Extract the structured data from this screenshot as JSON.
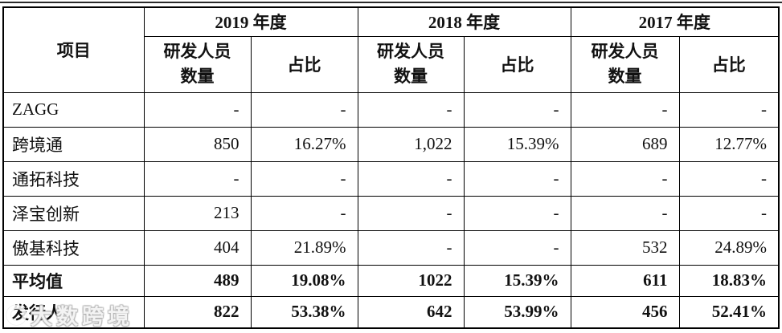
{
  "table": {
    "header": {
      "project_label": "项目",
      "year_groups": [
        {
          "label": "2019 年度"
        },
        {
          "label": "2018 年度"
        },
        {
          "label": "2017 年度"
        }
      ],
      "sub_headers": {
        "count_label": "研发人员\n数量",
        "ratio_label": "占比"
      }
    },
    "rows": [
      {
        "name": "ZAGG",
        "bold": false,
        "values": [
          "-",
          "-",
          "-",
          "-",
          "-",
          "-"
        ]
      },
      {
        "name": "跨境通",
        "bold": false,
        "values": [
          "850",
          "16.27%",
          "1,022",
          "15.39%",
          "689",
          "12.77%"
        ]
      },
      {
        "name": "通拓科技",
        "bold": false,
        "values": [
          "-",
          "-",
          "-",
          "-",
          "-",
          "-"
        ]
      },
      {
        "name": "泽宝创新",
        "bold": false,
        "values": [
          "213",
          "-",
          "-",
          "-",
          "-",
          "-"
        ]
      },
      {
        "name": "傲基科技",
        "bold": false,
        "values": [
          "404",
          "21.89%",
          "-",
          "-",
          "532",
          "24.89%"
        ]
      },
      {
        "name": "平均值",
        "bold": true,
        "values": [
          "489",
          "19.08%",
          "1022",
          "15.39%",
          "611",
          "18.83%"
        ]
      },
      {
        "name": "发行人",
        "bold": true,
        "values": [
          "822",
          "53.38%",
          "642",
          "53.99%",
          "456",
          "52.41%"
        ]
      }
    ],
    "colors": {
      "border": "#000000",
      "text": "#111111",
      "background": "#ffffff"
    }
  },
  "watermark": {
    "text": "大数跨境",
    "icon": "ring-logo"
  }
}
